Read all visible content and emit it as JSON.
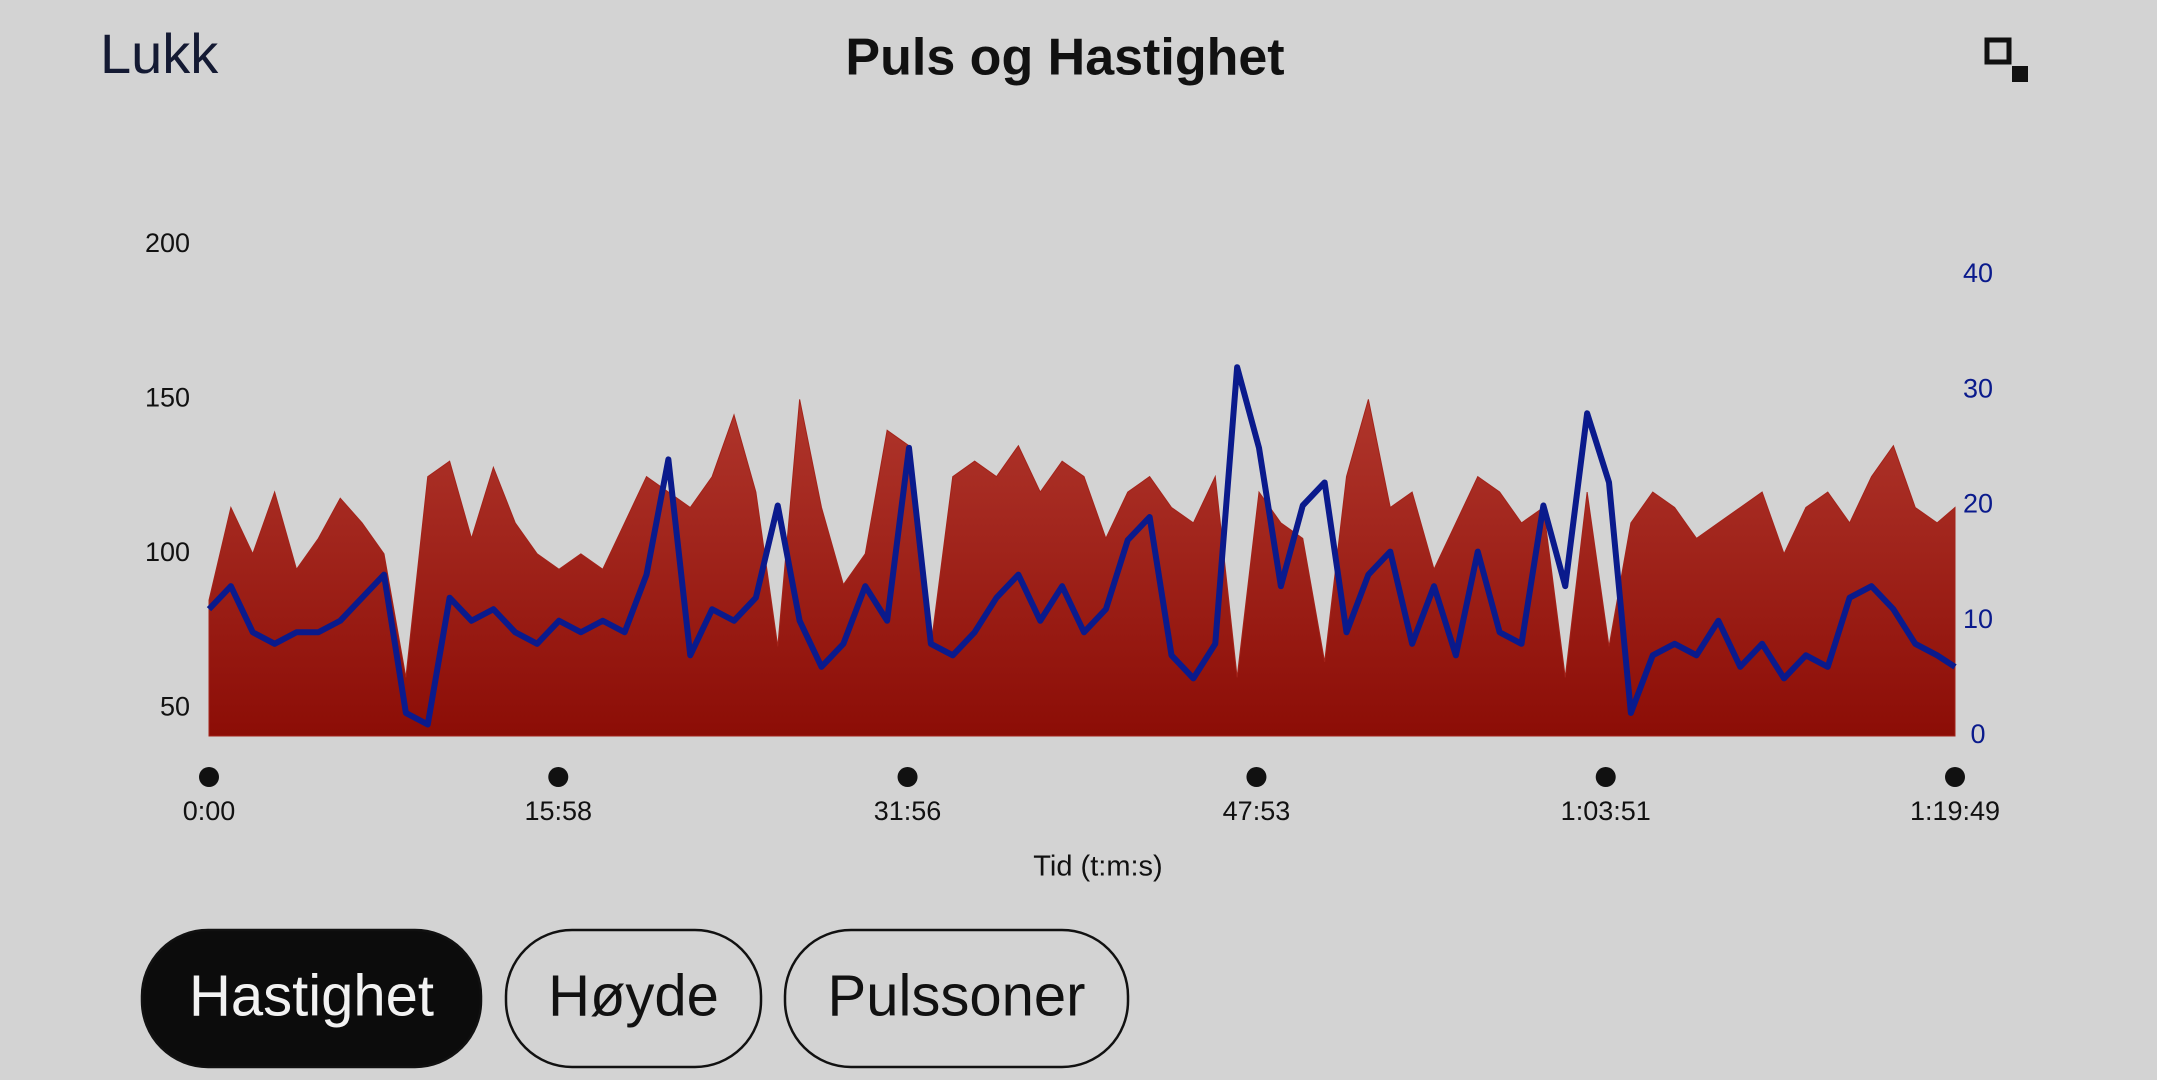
{
  "header": {
    "close": "Lukk"
  },
  "chart_data": {
    "type": "area",
    "title": "Puls og Hastighet",
    "xlabel": "Tid (t:m:s)",
    "x": [
      0,
      60,
      120,
      180,
      240,
      300,
      360,
      420,
      480,
      540,
      600,
      660,
      720,
      780,
      840,
      900,
      960,
      1020,
      1080,
      1140,
      1200,
      1260,
      1320,
      1380,
      1440,
      1500,
      1560,
      1620,
      1680,
      1740,
      1800,
      1860,
      1920,
      1980,
      2040,
      2100,
      2160,
      2220,
      2280,
      2340,
      2400,
      2460,
      2520,
      2580,
      2640,
      2700,
      2760,
      2820,
      2880,
      2940,
      3000,
      3060,
      3120,
      3180,
      3240,
      3300,
      3360,
      3420,
      3480,
      3540,
      3600,
      3660,
      3720,
      3780,
      3840,
      3900,
      3960,
      4020,
      4080,
      4140,
      4200,
      4260,
      4320,
      4380,
      4440,
      4500,
      4560,
      4620,
      4680,
      4740,
      4789
    ],
    "xlim": [
      0,
      4789
    ],
    "xticks": [
      {
        "value": 0,
        "label": "0:00"
      },
      {
        "value": 958,
        "label": "15:58"
      },
      {
        "value": 1916,
        "label": "31:56"
      },
      {
        "value": 2873,
        "label": "47:53"
      },
      {
        "value": 3831,
        "label": "1:03:51"
      },
      {
        "value": 4789,
        "label": "1:19:49"
      }
    ],
    "ylim": [
      41,
      200
    ],
    "yticks": [
      50,
      100,
      150,
      200
    ],
    "y2lim": [
      0,
      40
    ],
    "y2ticks": [
      0,
      10,
      20,
      30,
      40
    ],
    "y2color": "#0a1a8c",
    "series": [
      {
        "type": "area",
        "color": "#a3231a",
        "values": [
          85,
          115,
          100,
          120,
          95,
          105,
          118,
          110,
          100,
          60,
          125,
          130,
          105,
          128,
          110,
          100,
          95,
          100,
          95,
          110,
          125,
          120,
          115,
          125,
          145,
          120,
          70,
          150,
          115,
          90,
          100,
          140,
          135,
          70,
          125,
          130,
          125,
          135,
          120,
          130,
          125,
          105,
          120,
          125,
          115,
          110,
          125,
          60,
          120,
          110,
          105,
          65,
          125,
          150,
          115,
          120,
          95,
          110,
          125,
          120,
          110,
          115,
          60,
          120,
          70,
          110,
          120,
          115,
          105,
          110,
          115,
          120,
          100,
          115,
          120,
          110,
          125,
          135,
          115,
          110,
          115
        ]
      },
      {
        "type": "line",
        "axis": "y2",
        "color": "#0a1a8c",
        "values": [
          11,
          13,
          9,
          8,
          9,
          9,
          10,
          12,
          14,
          2,
          1,
          12,
          10,
          11,
          9,
          8,
          10,
          9,
          10,
          9,
          14,
          24,
          7,
          11,
          10,
          12,
          20,
          10,
          6,
          8,
          13,
          10,
          25,
          8,
          7,
          9,
          12,
          14,
          10,
          13,
          9,
          11,
          17,
          19,
          7,
          5,
          8,
          32,
          25,
          13,
          20,
          22,
          9,
          14,
          16,
          8,
          13,
          7,
          16,
          9,
          8,
          20,
          13,
          28,
          22,
          2,
          7,
          8,
          7,
          10,
          6,
          8,
          5,
          7,
          6,
          12,
          13,
          11,
          8,
          7,
          6
        ]
      }
    ]
  },
  "tabs": [
    "Hastighet",
    "Høyde",
    "Pulssoner"
  ],
  "active_tab": 0
}
